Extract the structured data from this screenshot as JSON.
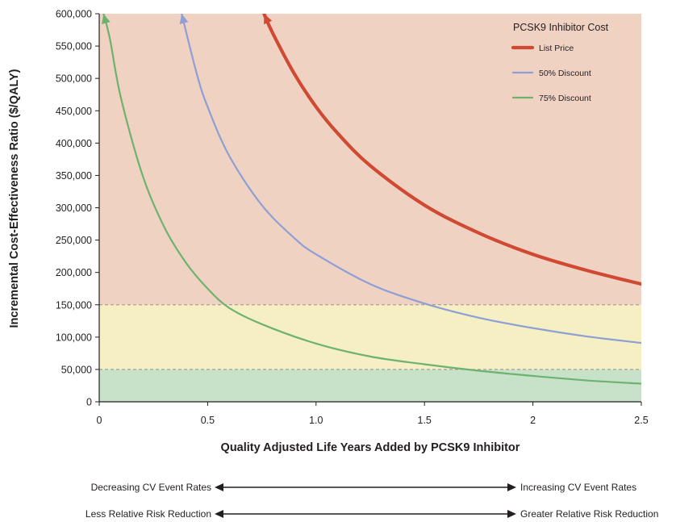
{
  "chart_data": {
    "type": "line",
    "xlabel": "Quality Adjusted Life Years Added by PCSK9 Inhibitor",
    "ylabel": "Incremental Cost-Effectiveness Ratio ($/QALY)",
    "xlim": [
      0,
      2.5
    ],
    "ylim": [
      0,
      600000
    ],
    "x_ticks": [
      0,
      0.5,
      1.0,
      1.5,
      2,
      2.5
    ],
    "x_tick_labels": [
      "0",
      "0.5",
      "1.0",
      "1.5",
      "2",
      "2.5"
    ],
    "y_ticks": [
      0,
      50000,
      100000,
      150000,
      200000,
      250000,
      300000,
      350000,
      400000,
      450000,
      500000,
      550000,
      600000
    ],
    "y_tick_labels": [
      "0",
      "50,000",
      "100,000",
      "150,000",
      "200,000",
      "250,000",
      "300,000",
      "350,000",
      "400,000",
      "450,000",
      "500,000",
      "550,000",
      "600,000"
    ],
    "grid": false,
    "legend": {
      "title": "PCSK9 Inhibitor Cost",
      "placement": "top-right"
    },
    "bands": [
      {
        "from": 0,
        "to": 50000,
        "color": "#c7e2c9"
      },
      {
        "from": 50000,
        "to": 150000,
        "color": "#f6efc4"
      },
      {
        "from": 150000,
        "to": 600000,
        "color": "#f0d2c3"
      }
    ],
    "threshold_lines": [
      50000,
      150000
    ],
    "series": [
      {
        "name": "List Price",
        "color": "#d04a33",
        "stroke_weight": "heavy",
        "x": [
          0.76,
          0.8,
          0.9,
          1.0,
          1.1,
          1.25,
          1.5,
          1.75,
          2.0,
          2.25,
          2.5
        ],
        "y": [
          600000,
          570000,
          507000,
          456000,
          415000,
          365000,
          304000,
          261000,
          228000,
          203000,
          182000
        ]
      },
      {
        "name": "50% Discount",
        "color": "#8d9fd4",
        "stroke_weight": "medium",
        "x": [
          0.38,
          0.45,
          0.5,
          0.6,
          0.75,
          0.9,
          1.0,
          1.25,
          1.5,
          1.75,
          2.0,
          2.25,
          2.5
        ],
        "y": [
          600000,
          507000,
          456000,
          380000,
          304000,
          253000,
          228000,
          182000,
          152000,
          130000,
          114000,
          101000,
          91000
        ]
      },
      {
        "name": "75% Discount",
        "color": "#6db26f",
        "stroke_weight": "medium",
        "x": [
          0.02,
          0.05,
          0.1,
          0.2,
          0.3,
          0.4,
          0.5,
          0.6,
          0.75,
          1.0,
          1.25,
          1.5,
          1.75,
          2.0,
          2.25,
          2.5
        ],
        "y": [
          600000,
          560000,
          470000,
          350000,
          270000,
          215000,
          175000,
          145000,
          120000,
          90000,
          70000,
          58000,
          48000,
          40000,
          33000,
          28000
        ]
      }
    ]
  },
  "footer_arrows": [
    {
      "left": "Decreasing CV Event Rates",
      "right": "Increasing CV Event Rates"
    },
    {
      "left": "Less Relative Risk Reduction",
      "right": "Greater Relative Risk Reduction"
    }
  ]
}
